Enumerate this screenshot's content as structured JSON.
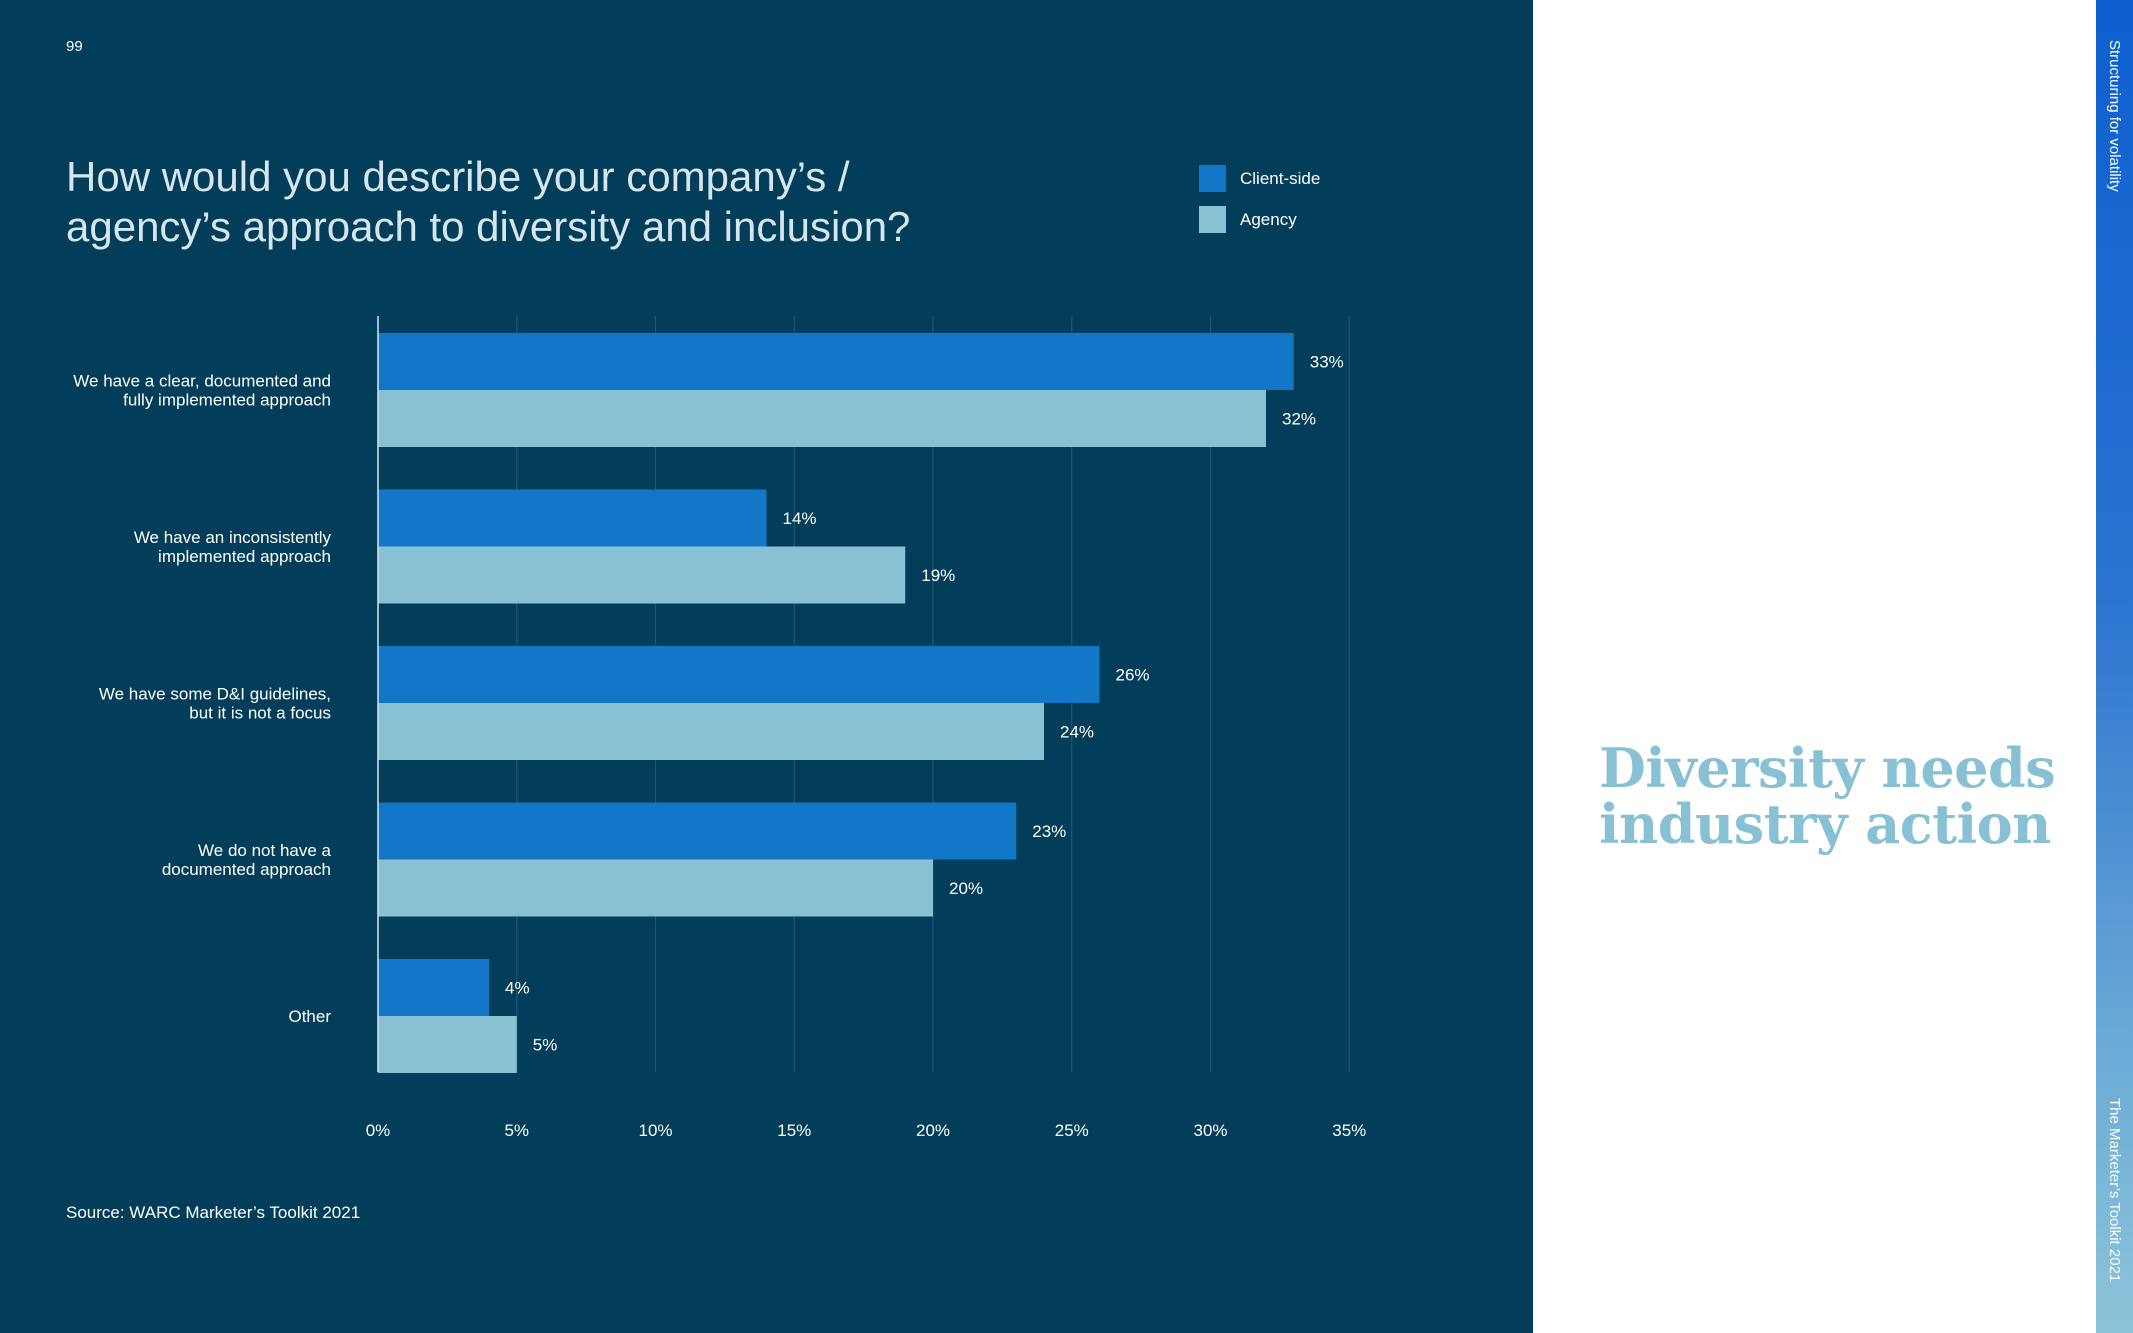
{
  "page": {
    "number": "99",
    "source": "Source: WARC Marketer’s Toolkit 2021",
    "side_label_top": "Structuring for volatility",
    "side_label_bottom": "The Marketer’s Toolkit 2021"
  },
  "right_panel": {
    "headline_line1": "Diversity needs",
    "headline_line2": "industry action",
    "faded_text": ""
  },
  "legend": [
    {
      "label": "Client-side",
      "color": "#1177c6"
    },
    {
      "label": "Agency",
      "color": "#88c1d4"
    }
  ],
  "chart_data": {
    "type": "bar",
    "orientation": "horizontal",
    "title": "How would you describe your company’s / agency’s approach to diversity and inclusion?",
    "categories": [
      [
        "We have a clear, documented and",
        "fully implemented approach"
      ],
      [
        "We have an inconsistently",
        "implemented approach"
      ],
      [
        "We have some D&I guidelines,",
        "but it is not a focus"
      ],
      [
        "We do not have a",
        "documented approach"
      ],
      [
        "Other"
      ]
    ],
    "series": [
      {
        "name": "Client-side",
        "color": "#1177c6",
        "values": [
          33,
          14,
          26,
          23,
          4
        ]
      },
      {
        "name": "Agency",
        "color": "#88c1d4",
        "values": [
          32,
          19,
          24,
          20,
          5
        ]
      }
    ],
    "xlim": [
      0,
      35
    ],
    "xticks": [
      "0%",
      "5%",
      "10%",
      "15%",
      "20%",
      "25%",
      "30%",
      "35%"
    ],
    "value_suffix": "%",
    "grid": true,
    "legend_position": "top-right",
    "xlabel": "",
    "ylabel": ""
  }
}
